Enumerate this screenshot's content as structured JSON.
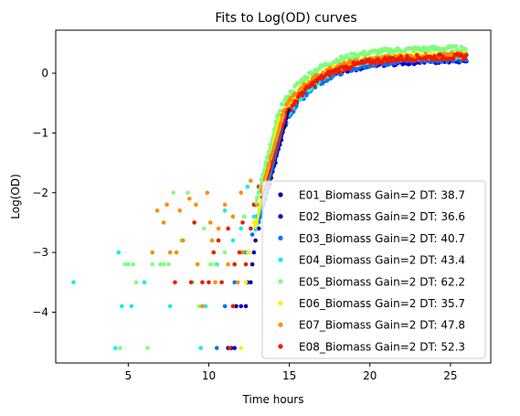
{
  "chart_data": {
    "type": "scatter",
    "title": "Fits to Log(OD) curves",
    "xlabel": "Time hours",
    "ylabel": "Log(OD)",
    "xlim": [
      0.5,
      27.5
    ],
    "ylim": [
      -4.85,
      0.72
    ],
    "xticks": [
      5,
      10,
      15,
      20,
      25
    ],
    "yticks": [
      0,
      -1,
      -2,
      -3,
      -4
    ],
    "xtick_labels": [
      "5",
      "10",
      "15",
      "20",
      "25"
    ],
    "ytick_labels": [
      "0",
      "−1",
      "−2",
      "−3",
      "−4"
    ],
    "legend_position": "lower-right",
    "series": [
      {
        "name": "E01_Biomass Gain=2 DT: 38.7",
        "color": "#00008f",
        "fit_start": [
          13.6,
          -2.0
        ],
        "fit_mid": [
          15.0,
          -0.6
        ],
        "plateau": 0.25,
        "early_points": [
          [
            11.2,
            -4.6
          ],
          [
            11.4,
            -4.6
          ],
          [
            11.7,
            -3.9
          ],
          [
            12.3,
            -3.9
          ],
          [
            12.6,
            -3.5
          ],
          [
            12.7,
            -3.2
          ],
          [
            12.9,
            -2.8
          ],
          [
            13.2,
            -2.4
          ],
          [
            13.5,
            -2.1
          ]
        ]
      },
      {
        "name": "E02_Biomass Gain=2 DT: 36.6",
        "color": "#0000d8",
        "fit_start": [
          13.3,
          -2.3
        ],
        "fit_mid": [
          14.8,
          -0.7
        ],
        "plateau": 0.22,
        "early_points": [
          [
            11.6,
            -4.6
          ],
          [
            12.0,
            -3.9
          ],
          [
            12.4,
            -3.5
          ],
          [
            12.8,
            -3.0
          ],
          [
            13.1,
            -2.6
          ]
        ]
      },
      {
        "name": "E03_Biomass Gain=2 DT: 40.7",
        "color": "#0073ff",
        "fit_start": [
          13.1,
          -2.5
        ],
        "fit_mid": [
          14.6,
          -0.9
        ],
        "plateau": 0.25,
        "early_points": [
          [
            10.5,
            -4.6
          ],
          [
            11.0,
            -3.9
          ],
          [
            11.6,
            -3.5
          ],
          [
            12.3,
            -3.0
          ],
          [
            12.7,
            -2.7
          ],
          [
            13.0,
            -2.4
          ]
        ]
      },
      {
        "name": "E04_Biomass Gain=2 DT: 43.4",
        "color": "#14f0e0",
        "fit_start": [
          12.9,
          -2.6
        ],
        "fit_mid": [
          14.5,
          -0.9
        ],
        "plateau": 0.3,
        "early_points": [
          [
            1.6,
            -3.5
          ],
          [
            4.2,
            -4.6
          ],
          [
            4.4,
            -3.0
          ],
          [
            4.6,
            -3.9
          ],
          [
            5.2,
            -3.9
          ],
          [
            6.0,
            -3.5
          ],
          [
            7.6,
            -3.9
          ],
          [
            9.5,
            -4.6
          ],
          [
            9.8,
            -3.9
          ],
          [
            10.5,
            -3.2
          ],
          [
            11.0,
            -2.3
          ],
          [
            11.5,
            -2.8
          ],
          [
            12.0,
            -2.6
          ],
          [
            12.4,
            -1.9
          ],
          [
            12.8,
            -2.4
          ]
        ]
      },
      {
        "name": "E05_Biomass Gain=2 DT: 62.2",
        "color": "#7dff7a",
        "fit_start": [
          12.9,
          -2.2
        ],
        "fit_mid": [
          14.4,
          -0.6
        ],
        "plateau": 0.42,
        "early_points": [
          [
            4.5,
            -4.6
          ],
          [
            4.8,
            -3.2
          ],
          [
            5.0,
            -3.2
          ],
          [
            5.3,
            -3.2
          ],
          [
            5.5,
            -3.5
          ],
          [
            6.2,
            -4.6
          ],
          [
            6.5,
            -3.2
          ],
          [
            7.0,
            -3.2
          ],
          [
            7.2,
            -3.2
          ],
          [
            7.5,
            -3.2
          ],
          [
            7.8,
            -2.0
          ],
          [
            8.3,
            -2.8
          ],
          [
            8.7,
            -2.0
          ],
          [
            9.0,
            -3.5
          ],
          [
            9.4,
            -3.9
          ],
          [
            9.7,
            -2.6
          ],
          [
            10.1,
            -3.2
          ],
          [
            10.4,
            -3.2
          ],
          [
            10.6,
            -2.8
          ],
          [
            11.0,
            -3.0
          ],
          [
            11.6,
            -3.2
          ],
          [
            12.2,
            -2.4
          ],
          [
            12.4,
            -3.0
          ]
        ]
      },
      {
        "name": "E06_Biomass Gain=2 DT: 35.7",
        "color": "#ffee00",
        "fit_start": [
          12.9,
          -2.6
        ],
        "fit_mid": [
          14.3,
          -0.8
        ],
        "plateau": 0.3,
        "early_points": [
          [
            12.0,
            -4.6
          ],
          [
            12.3,
            -3.5
          ],
          [
            12.5,
            -3.0
          ],
          [
            12.8,
            -2.5
          ]
        ]
      },
      {
        "name": "E07_Biomass Gain=2 DT: 47.8",
        "color": "#ff8c00",
        "fit_start": [
          13.2,
          -2.0
        ],
        "fit_mid": [
          14.7,
          -0.6
        ],
        "plateau": 0.3,
        "early_points": [
          [
            6.5,
            -3.0
          ],
          [
            6.8,
            -2.3
          ],
          [
            7.2,
            -2.5
          ],
          [
            7.4,
            -2.2
          ],
          [
            7.6,
            -3.0
          ],
          [
            8.0,
            -3.0
          ],
          [
            8.2,
            -2.3
          ],
          [
            8.4,
            -2.8
          ],
          [
            8.8,
            -2.1
          ],
          [
            9.2,
            -2.2
          ],
          [
            9.3,
            -3.2
          ],
          [
            9.6,
            -3.9
          ],
          [
            9.9,
            -2.0
          ],
          [
            10.1,
            -2.5
          ],
          [
            10.2,
            -2.8
          ],
          [
            10.4,
            -3.5
          ],
          [
            10.6,
            -2.6
          ],
          [
            11.0,
            -2.2
          ],
          [
            11.2,
            -3.2
          ],
          [
            11.5,
            -2.4
          ],
          [
            11.8,
            -3.5
          ],
          [
            12.0,
            -2.0
          ],
          [
            12.1,
            -3.0
          ],
          [
            12.6,
            -1.8
          ],
          [
            13.0,
            -2.2
          ]
        ]
      },
      {
        "name": "E08_Biomass Gain=2 DT: 52.3",
        "color": "#ee1a00",
        "fit_start": [
          13.3,
          -2.1
        ],
        "fit_mid": [
          14.8,
          -0.7
        ],
        "plateau": 0.28,
        "early_points": [
          [
            7.9,
            -3.5
          ],
          [
            8.9,
            -3.5
          ],
          [
            9.1,
            -2.5
          ],
          [
            9.6,
            -3.5
          ],
          [
            10.0,
            -3.5
          ],
          [
            10.3,
            -3.0
          ],
          [
            10.6,
            -2.8
          ],
          [
            10.8,
            -3.5
          ],
          [
            11.2,
            -2.6
          ],
          [
            11.3,
            -4.6
          ],
          [
            11.5,
            -3.9
          ],
          [
            11.6,
            -3.2
          ],
          [
            11.9,
            -3.0
          ],
          [
            12.1,
            -2.5
          ],
          [
            12.3,
            -3.2
          ],
          [
            12.6,
            -2.6
          ],
          [
            12.8,
            -2.2
          ],
          [
            13.1,
            -1.9
          ]
        ]
      }
    ]
  }
}
